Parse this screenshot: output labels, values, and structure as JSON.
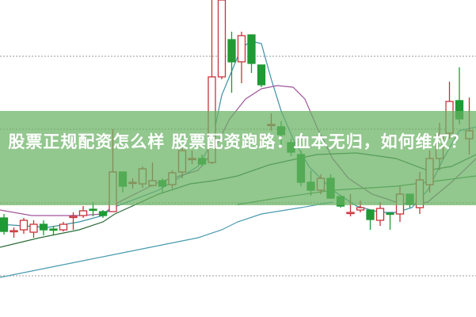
{
  "banner": {
    "title": "股票正规配资怎么样 股票配资跑路：血本无归，如何维权？",
    "color": "#68b262"
  },
  "chart_data": {
    "type": "candlestick",
    "title": "",
    "xlabel": "",
    "ylabel": "",
    "grid": "horizontal dotted",
    "legend": "none",
    "colors": {
      "up": "#c8323a",
      "down": "#1f9a35",
      "grid": "#999999"
    },
    "candles_ohlc": [
      [
        12.5,
        13,
        10.4,
        10.8
      ],
      [
        10.8,
        11.3,
        10,
        10.9
      ],
      [
        11,
        12.5,
        10.5,
        12.2
      ],
      [
        10.7,
        12.2,
        10,
        11.7
      ],
      [
        11.7,
        12.2,
        10.3,
        11
      ],
      [
        11.1,
        11.5,
        10.4,
        11
      ],
      [
        11,
        12,
        10.8,
        11.7
      ],
      [
        12.6,
        13.2,
        11,
        12.7
      ],
      [
        12.8,
        14,
        12.5,
        13.4
      ],
      [
        13.6,
        14.5,
        12.7,
        13.5
      ],
      [
        13.3,
        13.5,
        12.5,
        12.8
      ],
      [
        13.3,
        23.7,
        13.3,
        18.3
      ],
      [
        18.3,
        18.3,
        15.7,
        16.5
      ],
      [
        16.9,
        17.5,
        16.2,
        17
      ],
      [
        16.8,
        19,
        16.3,
        18.7
      ],
      [
        16.6,
        19.5,
        16.5,
        17.2
      ],
      [
        17.2,
        17.5,
        15.7,
        16.5
      ],
      [
        16.7,
        18.5,
        16.2,
        18.2
      ],
      [
        18.3,
        21.5,
        17.5,
        21
      ],
      [
        19.9,
        21,
        19.3,
        20
      ],
      [
        20,
        20.5,
        19,
        19.3
      ],
      [
        19.5,
        40,
        19.3,
        30.3
      ],
      [
        30.3,
        40,
        30,
        40
      ],
      [
        35,
        36,
        28.3,
        32.2
      ],
      [
        32.2,
        36,
        29.5,
        35.5
      ],
      [
        35.6,
        35.6,
        30.8,
        32
      ],
      [
        31.8,
        31.8,
        29,
        29.3
      ],
      [
        24.2,
        25.7,
        23.5,
        24.3
      ],
      [
        24,
        24.7,
        21.7,
        23
      ],
      [
        22,
        22.5,
        20.3,
        20.8
      ],
      [
        20.5,
        21,
        16.5,
        17
      ],
      [
        17,
        18.5,
        15.3,
        16
      ],
      [
        16,
        18,
        15.5,
        17.5
      ],
      [
        17.5,
        18,
        15,
        15
      ],
      [
        15.2,
        15.2,
        13.8,
        14
      ],
      [
        13.1,
        15.5,
        12.7,
        13.2
      ],
      [
        13.5,
        14.7,
        13.2,
        13.8
      ],
      [
        13.5,
        13.5,
        11,
        12.3
      ],
      [
        12.2,
        14.5,
        11.5,
        13.7
      ],
      [
        13.1,
        13.2,
        11,
        13
      ],
      [
        13,
        16.5,
        12,
        15.5
      ],
      [
        15.5,
        15.5,
        13.8,
        14.2
      ],
      [
        13.8,
        18.3,
        13,
        17.3
      ],
      [
        16.7,
        21,
        15.7,
        20
      ],
      [
        20,
        24.5,
        18.5,
        23
      ],
      [
        23.2,
        29.7,
        22.5,
        27.2
      ],
      [
        27.3,
        31.5,
        24.3,
        25
      ],
      [
        22.5,
        27.7,
        20.5,
        23.5
      ]
    ],
    "moving_averages": [
      {
        "color": "#3d8fa6",
        "points": [
          [
            -0.4,
            11.7
          ],
          [
            4.4,
            11.3
          ],
          [
            7.6,
            12
          ],
          [
            10,
            12.8
          ],
          [
            11,
            13.8
          ],
          [
            15.6,
            16
          ],
          [
            19.6,
            19
          ],
          [
            21,
            22
          ],
          [
            22,
            28
          ],
          [
            23,
            31
          ],
          [
            24,
            34
          ],
          [
            25,
            34.8
          ],
          [
            26,
            34.5
          ],
          [
            27,
            30
          ],
          [
            28,
            26
          ],
          [
            29.2,
            22.5
          ],
          [
            30.8,
            19
          ],
          [
            33.2,
            16
          ],
          [
            35.6,
            14
          ],
          [
            38,
            13.2
          ],
          [
            39.6,
            13.2
          ],
          [
            41.2,
            13.8
          ],
          [
            42.8,
            16
          ],
          [
            44.4,
            20
          ],
          [
            46,
            23.5
          ],
          [
            47.7,
            24
          ]
        ]
      },
      {
        "color": "#a0569a",
        "points": [
          [
            -0.4,
            13.5
          ],
          [
            2.8,
            12.8
          ],
          [
            7.6,
            12.8
          ],
          [
            10,
            13
          ],
          [
            11.6,
            14.5
          ],
          [
            15.6,
            17
          ],
          [
            19.6,
            18.5
          ],
          [
            21.2,
            21
          ],
          [
            22.8,
            25
          ],
          [
            24.4,
            27.5
          ],
          [
            26,
            28.8
          ],
          [
            27.6,
            29.2
          ],
          [
            29.2,
            29
          ],
          [
            30.4,
            27.5
          ],
          [
            31.6,
            24
          ],
          [
            33.2,
            20
          ],
          [
            34.8,
            17.5
          ],
          [
            37.2,
            15.5
          ],
          [
            39.6,
            14.5
          ],
          [
            41.2,
            14.2
          ],
          [
            42.8,
            14.5
          ],
          [
            45.2,
            17
          ],
          [
            47.7,
            20
          ]
        ]
      },
      {
        "color": "#2e6b3a",
        "points": [
          [
            -0.4,
            8.8
          ],
          [
            3.6,
            10
          ],
          [
            7.6,
            11
          ],
          [
            10,
            12
          ],
          [
            11.2,
            13
          ],
          [
            15.6,
            15.5
          ],
          [
            18.8,
            16.8
          ],
          [
            21.2,
            17.2
          ],
          [
            23.6,
            17.8
          ],
          [
            26.8,
            19.2
          ],
          [
            31.6,
            20.5
          ],
          [
            35.6,
            20.7
          ],
          [
            39.6,
            20
          ],
          [
            42.8,
            18.5
          ],
          [
            45.2,
            19
          ],
          [
            47.7,
            20.5
          ]
        ]
      },
      {
        "color": "#3f8a4a",
        "points": [
          [
            23.6,
            14.2
          ],
          [
            27.6,
            15
          ],
          [
            33.2,
            16
          ],
          [
            39.6,
            16.5
          ],
          [
            47.7,
            17.8
          ]
        ]
      },
      {
        "color": "#4a9ab0",
        "points": [
          [
            -0.4,
            5
          ],
          [
            3.6,
            6
          ],
          [
            7.6,
            7
          ],
          [
            11.6,
            8
          ],
          [
            15.6,
            9
          ],
          [
            19.6,
            10
          ],
          [
            22,
            11
          ],
          [
            23.6,
            12
          ],
          [
            26,
            13
          ],
          [
            30,
            13.8
          ],
          [
            33.2,
            14.5
          ]
        ]
      }
    ],
    "gridlines": [
      32.9,
      23.7,
      14.4,
      5.2
    ],
    "ylim": [
      0,
      40
    ]
  }
}
